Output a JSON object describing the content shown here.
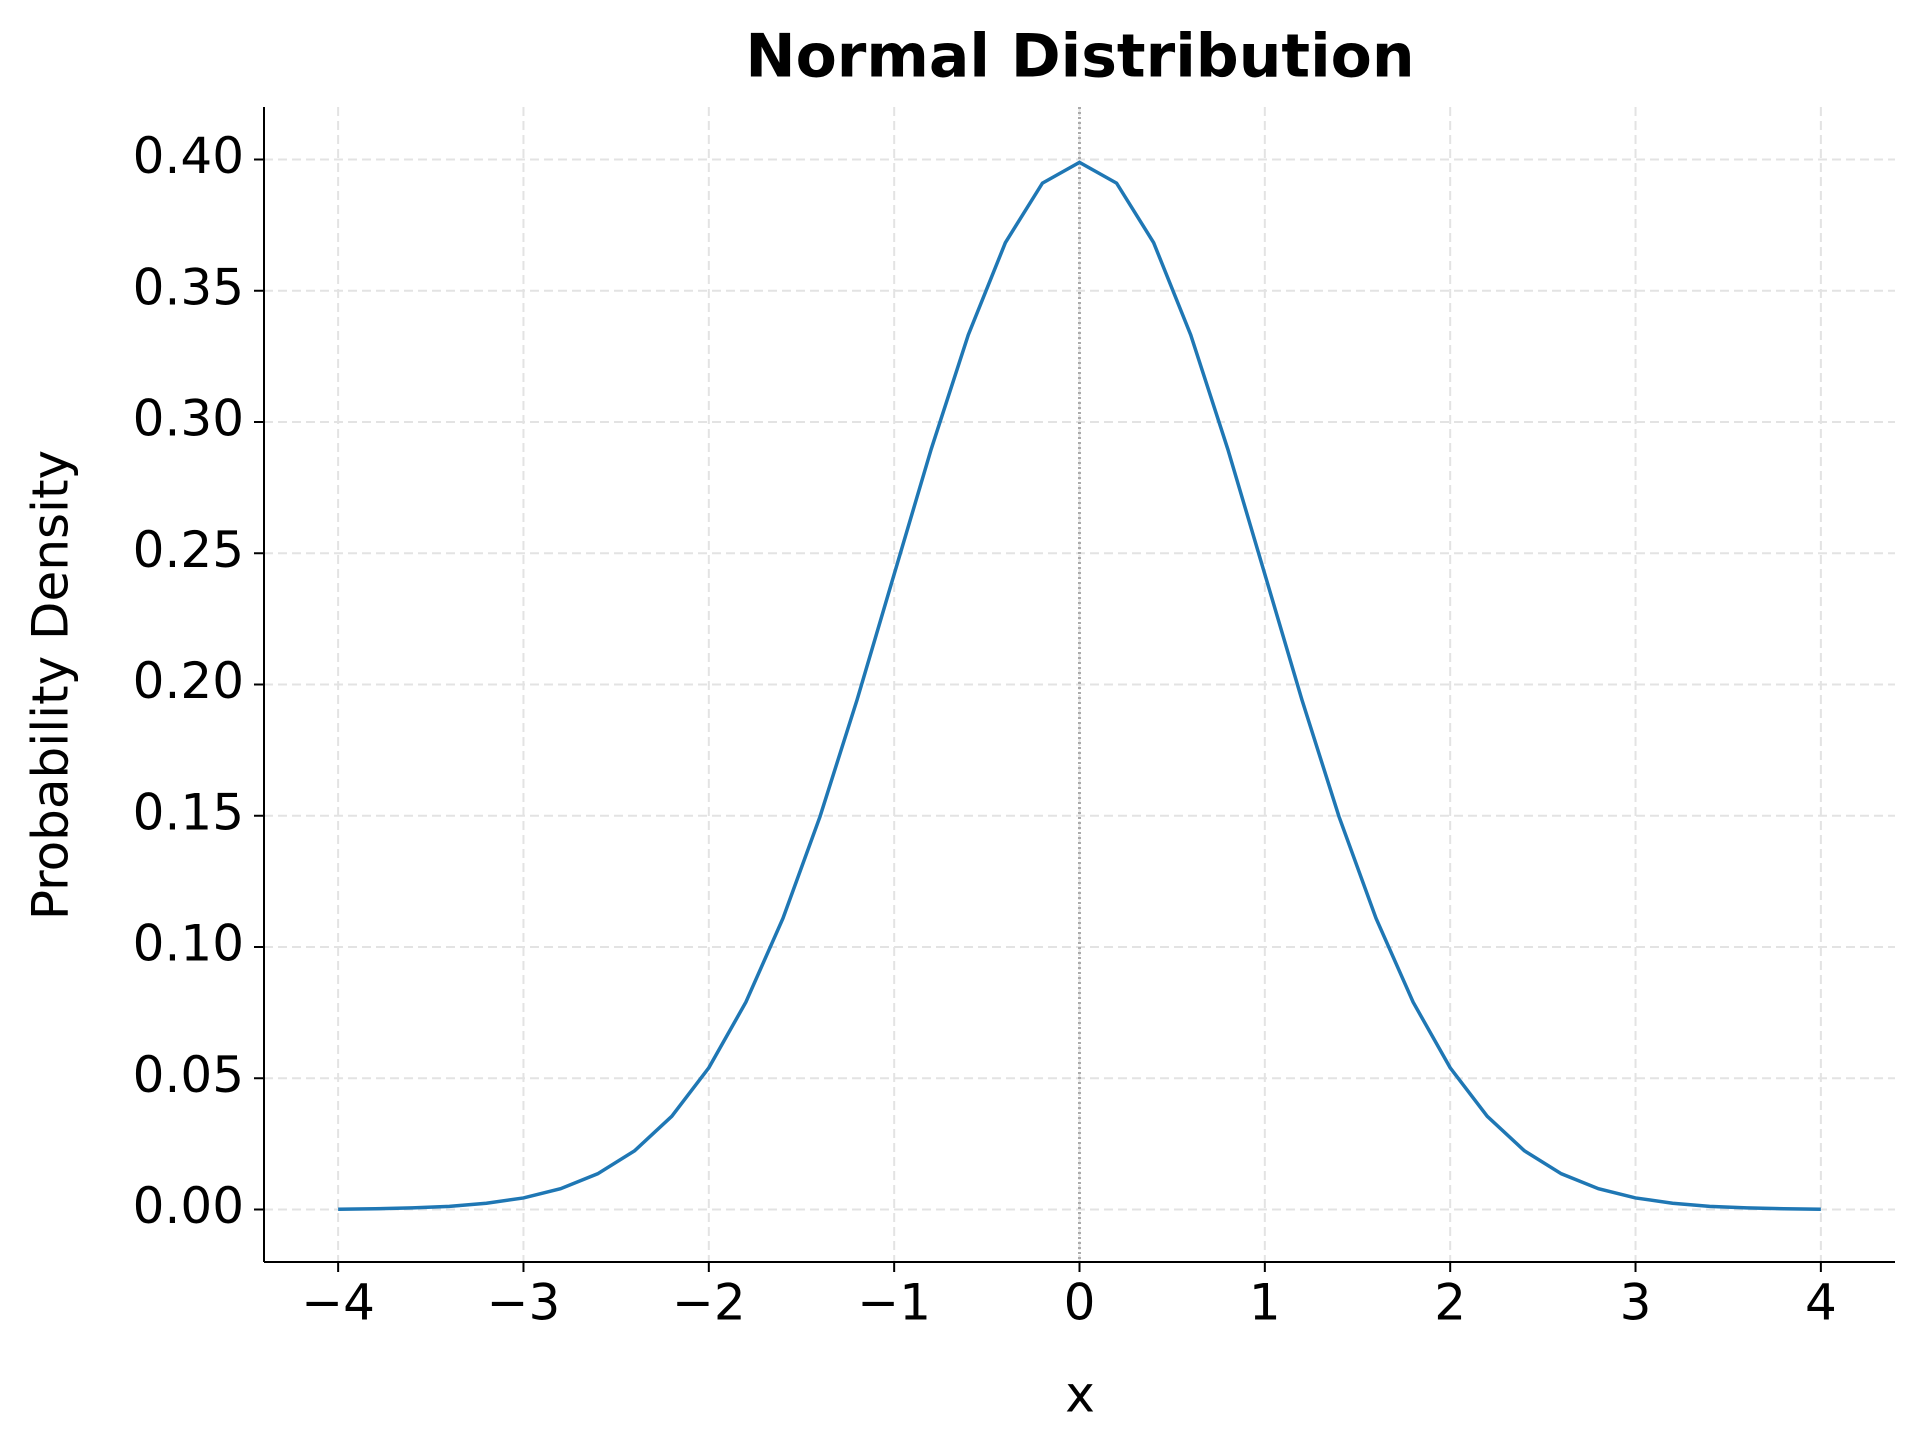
{
  "chart_data": {
    "type": "line",
    "title": "Normal Distribution",
    "x_label": "x",
    "y_label": "Probability Density",
    "x": [
      -4,
      -3.8,
      -3.6,
      -3.4,
      -3.2,
      -3,
      -2.8,
      -2.6,
      -2.4,
      -2.2,
      -2,
      -1.8,
      -1.6,
      -1.4,
      -1.2,
      -1,
      -0.8,
      -0.6,
      -0.4,
      -0.2,
      0,
      0.2,
      0.4,
      0.6,
      0.8,
      1,
      1.2,
      1.4,
      1.6,
      1.8,
      2,
      2.2,
      2.4,
      2.6,
      2.8,
      3,
      3.2,
      3.4,
      3.6,
      3.8,
      4
    ],
    "series": [
      {
        "color": "#1f77b4",
        "values": [
          0.0001,
          0.0003,
          0.0006,
          0.0012,
          0.0024,
          0.0044,
          0.0079,
          0.0136,
          0.0224,
          0.0355,
          0.054,
          0.079,
          0.1109,
          0.1497,
          0.1942,
          0.242,
          0.2897,
          0.3332,
          0.3683,
          0.391,
          0.3989,
          0.391,
          0.3683,
          0.3332,
          0.2897,
          0.242,
          0.1942,
          0.1497,
          0.1109,
          0.079,
          0.054,
          0.0355,
          0.0224,
          0.0136,
          0.0079,
          0.0044,
          0.0024,
          0.0012,
          0.0006,
          0.0003,
          0.0001
        ]
      }
    ],
    "xlim": [
      -4.4,
      4.4
    ],
    "ylim": [
      -0.02,
      0.42
    ],
    "xticks": [
      {
        "value": -4,
        "label": "−4"
      },
      {
        "value": -3,
        "label": "−3"
      },
      {
        "value": -2,
        "label": "−2"
      },
      {
        "value": -1,
        "label": "−1"
      },
      0,
      1,
      2,
      3,
      4
    ],
    "yticks": [
      {
        "value": 0,
        "label": "0.00"
      },
      {
        "value": 0.05,
        "label": "0.05"
      },
      {
        "value": 0.1,
        "label": "0.10"
      },
      {
        "value": 0.15,
        "label": "0.15"
      },
      {
        "value": 0.2,
        "label": "0.20"
      },
      {
        "value": 0.25,
        "label": "0.25"
      },
      {
        "value": 0.3,
        "label": "0.30"
      },
      {
        "value": 0.35,
        "label": "0.35"
      },
      {
        "value": 0.4,
        "label": "0.40"
      }
    ],
    "grid": true,
    "vline": 0
  }
}
